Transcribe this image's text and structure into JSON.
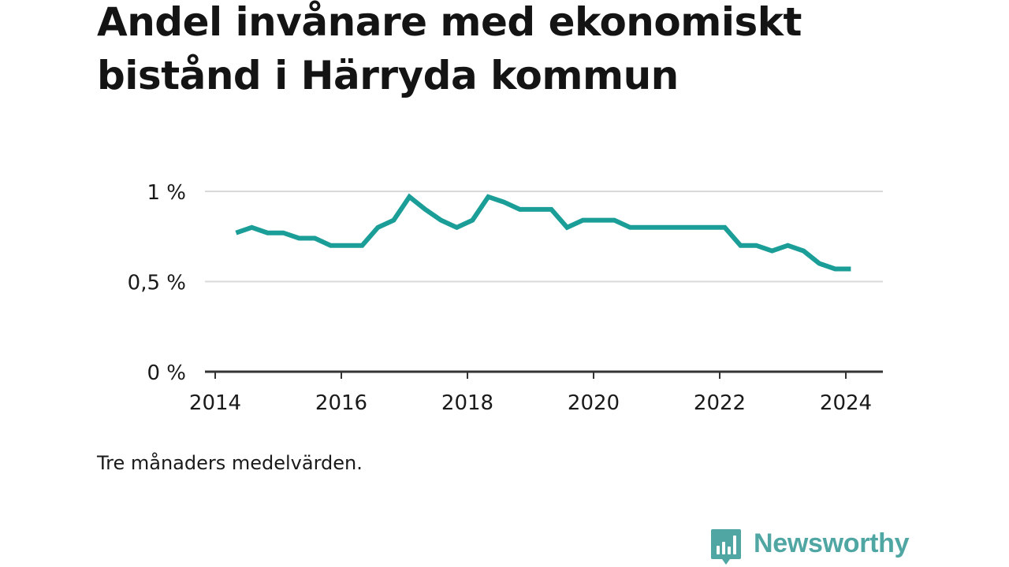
{
  "title": "Andel invånare med ekonomiskt bistånd i Härryda kommun",
  "note": "Tre månaders medelvärden.",
  "brand": {
    "name": "Newsworthy",
    "icon": "newsworthy-logo-icon",
    "color": "#4fa6a3"
  },
  "colors": {
    "line": "#1a9e97",
    "grid": "#d9d9d9",
    "axis": "#333333",
    "text": "#1a1a1a"
  },
  "chart_data": {
    "type": "line",
    "title": "Andel invånare med ekonomiskt bistånd i Härryda kommun",
    "xlabel": "",
    "ylabel": "",
    "x_ticks": [
      "2014",
      "2016",
      "2018",
      "2020",
      "2022",
      "2024"
    ],
    "y_ticks": [
      "0 %",
      "0,5 %",
      "1 %"
    ],
    "y_tick_values": [
      0,
      0.5,
      1.0
    ],
    "xlim": [
      2014,
      2024.6
    ],
    "ylim": [
      0,
      1.0
    ],
    "grid": true,
    "legend": "none",
    "series": [
      {
        "x": [
          2014.33,
          2014.58,
          2014.83,
          2015.08,
          2015.33,
          2015.58,
          2015.83,
          2016.08,
          2016.33,
          2016.58,
          2016.83,
          2017.08,
          2017.33,
          2017.58,
          2017.83,
          2018.08,
          2018.33,
          2018.58,
          2018.83,
          2019.08,
          2019.33,
          2019.58,
          2019.83,
          2020.08,
          2020.33,
          2020.58,
          2020.83,
          2021.08,
          2021.33,
          2021.58,
          2021.83,
          2022.08,
          2022.33,
          2022.58,
          2022.83,
          2023.08,
          2023.33,
          2023.58,
          2023.83,
          2024.08
        ],
        "y": [
          0.77,
          0.8,
          0.77,
          0.77,
          0.74,
          0.74,
          0.7,
          0.7,
          0.7,
          0.8,
          0.84,
          0.97,
          0.9,
          0.84,
          0.8,
          0.84,
          0.97,
          0.94,
          0.9,
          0.9,
          0.9,
          0.8,
          0.84,
          0.84,
          0.84,
          0.8,
          0.8,
          0.8,
          0.8,
          0.8,
          0.8,
          0.8,
          0.7,
          0.7,
          0.67,
          0.7,
          0.67,
          0.6,
          0.57,
          0.57
        ]
      }
    ]
  }
}
